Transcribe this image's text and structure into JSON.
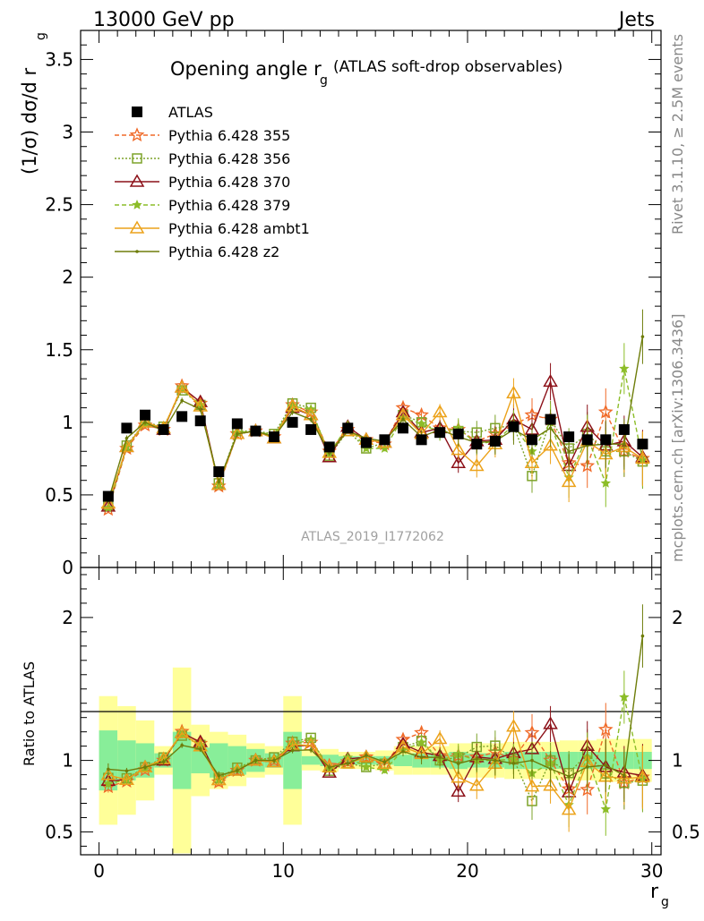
{
  "header": {
    "energy_label": "13000 GeV pp",
    "process_label": "Jets"
  },
  "side_labels": {
    "rivet": "Rivet 3.1.10, ≥ 2.5M events",
    "mcplots": "mcplots.cern.ch [arXiv:1306.3436]"
  },
  "analysis_id": "ATLAS_2019_I1772062",
  "main_title": {
    "text": "Opening angle r",
    "sub": "g",
    "suffix": "(ATLAS soft-drop observables)"
  },
  "axes": {
    "ylabel_main": "(1/σ) dσ/d r",
    "ylabel_main_sub": "g",
    "ylabel_ratio": "Ratio to ATLAS",
    "xlabel": "r",
    "xlabel_sub": "g"
  },
  "legend": [
    {
      "name": "ATLAS",
      "color": "#000000",
      "marker": "square-filled",
      "dash": ""
    },
    {
      "name": "Pythia 6.428 355",
      "color": "#f06a28",
      "marker": "star-open",
      "dash": "5,3"
    },
    {
      "name": "Pythia 6.428 356",
      "color": "#7da32a",
      "marker": "square-open",
      "dash": "2,2"
    },
    {
      "name": "Pythia 6.428 370",
      "color": "#8c1018",
      "marker": "triangle-open",
      "dash": ""
    },
    {
      "name": "Pythia 6.428 379",
      "color": "#8cbd28",
      "marker": "star-filled",
      "dash": "5,3"
    },
    {
      "name": "Pythia 6.428 ambt1",
      "color": "#eca21a",
      "marker": "triangle-open",
      "dash": ""
    },
    {
      "name": "Pythia 6.428 z2",
      "color": "#6e7d0a",
      "marker": "dot",
      "dash": ""
    }
  ],
  "chart_data": {
    "type": "scatter",
    "x": [
      0.5,
      1.5,
      2.5,
      3.5,
      4.5,
      5.5,
      6.5,
      7.5,
      8.5,
      9.5,
      10.5,
      11.5,
      12.5,
      13.5,
      14.5,
      15.5,
      16.5,
      17.5,
      18.5,
      19.5,
      20.5,
      21.5,
      22.5,
      23.5,
      24.5,
      25.5,
      26.5,
      27.5,
      28.5,
      29.5
    ],
    "xlim": [
      -1,
      30.5
    ],
    "xticks": [
      0,
      10,
      20,
      30
    ],
    "main": {
      "ylim": [
        0,
        3.7
      ],
      "yticks": [
        0,
        0.5,
        1,
        1.5,
        2,
        2.5,
        3,
        3.5
      ],
      "data": [
        0.49,
        0.96,
        1.05,
        0.95,
        1.04,
        1.01,
        0.66,
        0.99,
        0.94,
        0.9,
        1.0,
        0.95,
        0.83,
        0.96,
        0.86,
        0.88,
        0.96,
        0.88,
        0.93,
        0.92,
        0.85,
        0.87,
        0.97,
        0.88,
        1.02,
        0.9,
        0.88,
        0.88,
        0.95,
        0.85
      ],
      "series": [
        {
          "name": "Pythia 6.428 355",
          "values": [
            0.4,
            0.82,
            0.98,
            0.95,
            1.25,
            1.13,
            0.56,
            0.92,
            0.94,
            0.9,
            1.12,
            1.07,
            0.8,
            0.95,
            0.88,
            0.85,
            1.1,
            1.05,
            0.96,
            0.95,
            0.87,
            0.92,
            0.98,
            1.05,
            1.02,
            0.72,
            0.7,
            1.07,
            0.8,
            0.75
          ]
        },
        {
          "name": "Pythia 6.428 356",
          "values": [
            0.43,
            0.84,
            1.0,
            0.97,
            1.22,
            1.12,
            0.58,
            0.94,
            0.94,
            0.92,
            1.13,
            1.1,
            0.77,
            0.94,
            0.82,
            0.86,
            1.05,
            1.0,
            0.93,
            0.94,
            0.93,
            0.96,
            0.98,
            0.63,
            1.02,
            0.82,
            0.92,
            0.8,
            0.8,
            0.73
          ]
        },
        {
          "name": "Pythia 6.428 370",
          "values": [
            0.42,
            0.83,
            1.0,
            0.95,
            1.24,
            1.14,
            0.57,
            0.92,
            0.94,
            0.89,
            1.1,
            1.05,
            0.76,
            0.97,
            0.88,
            0.86,
            1.07,
            0.93,
            0.96,
            0.72,
            0.87,
            0.88,
            1.02,
            0.95,
            1.28,
            0.7,
            0.97,
            0.84,
            0.87,
            0.76
          ]
        },
        {
          "name": "Pythia 6.428 379",
          "values": [
            0.41,
            0.83,
            0.99,
            0.96,
            1.23,
            1.12,
            0.57,
            0.93,
            0.94,
            0.91,
            1.11,
            1.09,
            0.78,
            0.98,
            0.82,
            0.82,
            1.03,
            0.99,
            0.93,
            0.96,
            0.85,
            0.87,
            0.98,
            0.8,
            1.0,
            0.62,
            0.9,
            0.58,
            1.37,
            0.74
          ]
        },
        {
          "name": "Pythia 6.428 ambt1",
          "values": [
            0.44,
            0.83,
            1.0,
            0.96,
            1.24,
            1.11,
            0.57,
            0.92,
            0.94,
            0.89,
            1.11,
            1.05,
            0.79,
            0.94,
            0.88,
            0.86,
            1.05,
            0.92,
            1.07,
            0.81,
            0.7,
            0.85,
            1.2,
            0.72,
            0.84,
            0.59,
            0.87,
            0.78,
            0.83,
            0.75
          ]
        },
        {
          "name": "Pythia 6.428 z2",
          "values": [
            0.46,
            0.89,
            1.0,
            0.94,
            1.15,
            1.09,
            0.59,
            0.92,
            0.94,
            0.9,
            1.07,
            1.02,
            0.79,
            0.94,
            0.89,
            0.87,
            1.02,
            0.9,
            0.95,
            0.9,
            0.86,
            0.87,
            0.95,
            0.88,
            0.96,
            0.8,
            0.84,
            0.85,
            0.85,
            1.59
          ]
        }
      ]
    },
    "ratio": {
      "ylim": [
        0.34,
        2.35
      ],
      "yticks": [
        0.5,
        1,
        2
      ],
      "band_inner": [
        0.21,
        0.14,
        0.12,
        0.05,
        0.2,
        0.09,
        0.12,
        0.1,
        0.08,
        0.05,
        0.2,
        0.03,
        0.04,
        0.03,
        0.03,
        0.03,
        0.04,
        0.05,
        0.05,
        0.06,
        0.05,
        0.05,
        0.06,
        0.06,
        0.06,
        0.06,
        0.06,
        0.06,
        0.06,
        0.06
      ],
      "band_outer": [
        0.45,
        0.38,
        0.28,
        0.1,
        0.65,
        0.25,
        0.2,
        0.18,
        0.12,
        0.1,
        0.45,
        0.07,
        0.08,
        0.06,
        0.06,
        0.07,
        0.1,
        0.1,
        0.1,
        0.12,
        0.12,
        0.12,
        0.13,
        0.13,
        0.13,
        0.14,
        0.14,
        0.15,
        0.15,
        0.15
      ]
    }
  }
}
